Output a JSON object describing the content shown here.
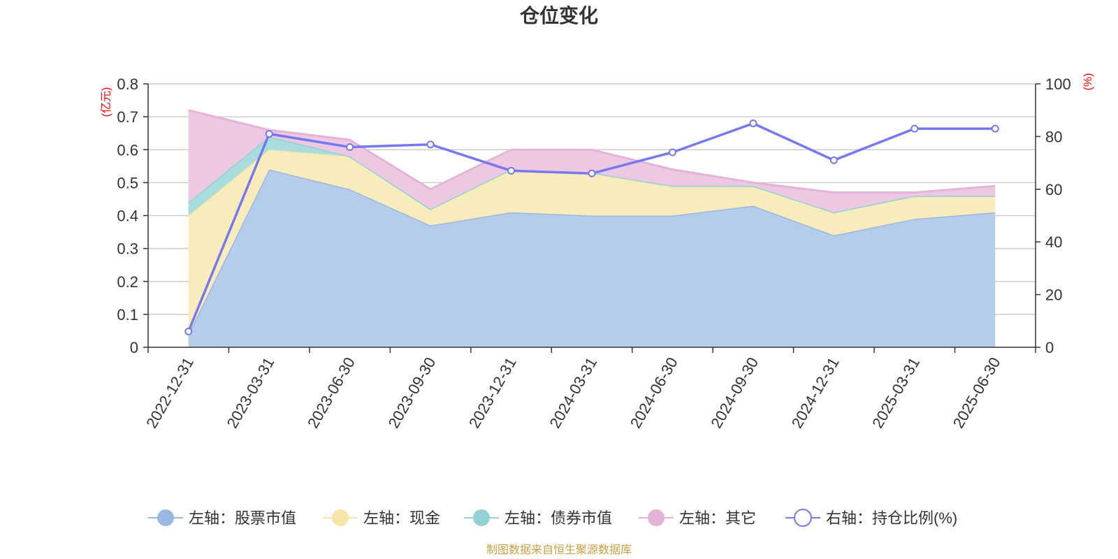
{
  "chart_data": {
    "type": "area",
    "title": "仓位变化",
    "left_axis_unit": "(亿元)",
    "right_axis_unit": "(%)",
    "categories": [
      "2022-12-31",
      "2023-03-31",
      "2023-06-30",
      "2023-09-30",
      "2023-12-31",
      "2024-03-31",
      "2024-06-30",
      "2024-09-30",
      "2024-12-31",
      "2025-03-31",
      "2025-06-30"
    ],
    "left_ylim": [
      0,
      0.8
    ],
    "left_ticks": [
      "0",
      "0.1",
      "0.2",
      "0.3",
      "0.4",
      "0.5",
      "0.6",
      "0.7",
      "0.8"
    ],
    "right_ylim": [
      0,
      100
    ],
    "right_ticks": [
      "0",
      "20",
      "40",
      "60",
      "80",
      "100"
    ],
    "stacked": true,
    "grid": true,
    "legend_position": "bottom",
    "series": [
      {
        "name": "左轴：股票市值",
        "axis": "left",
        "color": "#9ab8e2",
        "fill": "#b6cceb",
        "values": [
          0.04,
          0.54,
          0.48,
          0.37,
          0.41,
          0.4,
          0.4,
          0.43,
          0.34,
          0.39,
          0.41
        ]
      },
      {
        "name": "左轴：现金",
        "axis": "left",
        "color": "#f8e6a8",
        "fill": "#f8ecbd",
        "values": [
          0.36,
          0.06,
          0.1,
          0.05,
          0.13,
          0.13,
          0.09,
          0.06,
          0.07,
          0.07,
          0.05
        ]
      },
      {
        "name": "左轴：债券市值",
        "axis": "left",
        "color": "#93d2d4",
        "fill": "#a9dcdd",
        "values": [
          0.04,
          0.04,
          0.0,
          0.0,
          0.0,
          0.0,
          0.0,
          0.0,
          0.0,
          0.0,
          0.0
        ]
      },
      {
        "name": "左轴：其它",
        "axis": "left",
        "color": "#e6b3d8",
        "fill": "#ecc8e2",
        "values": [
          0.28,
          0.02,
          0.05,
          0.06,
          0.06,
          0.07,
          0.05,
          0.01,
          0.06,
          0.01,
          0.03
        ]
      },
      {
        "name": "右轴：持仓比例(%)",
        "axis": "right",
        "color": "#7878ee",
        "type": "line",
        "values": [
          6,
          81,
          76,
          77,
          67,
          66,
          74,
          85,
          71,
          83,
          83
        ]
      }
    ]
  },
  "footer": "制图数据来自恒生聚源数据库"
}
